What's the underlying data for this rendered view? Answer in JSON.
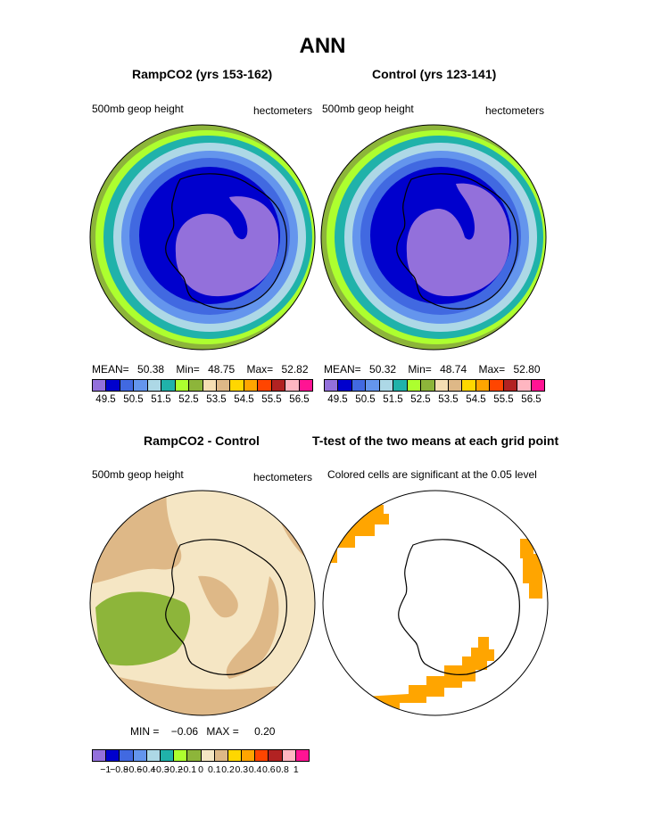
{
  "title": "ANN",
  "panels": [
    {
      "id": "ramp",
      "title": "RampCO2 (yrs 153-162)",
      "left_label": "500mb geop height",
      "right_label": "hectometers",
      "stats": {
        "mean_label": "MEAN=",
        "mean": "50.38",
        "min_label": "Min=",
        "min": "48.75",
        "max_label": "Max=",
        "max": "52.82"
      },
      "colorbar_ticks": [
        "49.5",
        "50.5",
        "51.5",
        "52.5",
        "53.5",
        "54.5",
        "55.5",
        "56.5"
      ]
    },
    {
      "id": "control",
      "title": "Control (yrs 123-141)",
      "left_label": "500mb geop height",
      "right_label": "hectometers",
      "stats": {
        "mean_label": "MEAN=",
        "mean": "50.32",
        "min_label": "Min=",
        "min": "48.74",
        "max_label": "Max=",
        "max": "52.80"
      },
      "colorbar_ticks": [
        "49.5",
        "50.5",
        "51.5",
        "52.5",
        "53.5",
        "54.5",
        "55.5",
        "56.5"
      ]
    },
    {
      "id": "diff",
      "title": "RampCO2 - Control",
      "left_label": "500mb geop height",
      "right_label": "hectometers",
      "stats": {
        "min_label": "MIN =",
        "min": "−0.06",
        "max_label": "MAX =",
        "max": "0.20"
      },
      "colorbar_ticks": [
        "−1",
        "−0.8",
        "−0.6",
        "−0.4",
        "−0.3",
        "−0.2",
        "−0.1",
        "0",
        "0.1",
        "0.2",
        "0.3",
        "0.4",
        "0.6",
        "0.8",
        "1"
      ]
    },
    {
      "id": "ttest",
      "title": "T-test of the two means at each grid point",
      "left_label": "Colored cells are significant at the 0.05 level"
    }
  ],
  "colors": {
    "abs_scale": [
      "#9370DB",
      "#0000CD",
      "#4169E1",
      "#6495ED",
      "#ADD8E6",
      "#20B2AA",
      "#ADFF2F",
      "#8DB53A",
      "#F5DEB3",
      "#DEB887",
      "#FFD700",
      "#FFA500",
      "#FF4500",
      "#B22222",
      "#FFB6C1",
      "#FF1493"
    ],
    "diff_scale": [
      "#9370DB",
      "#0000CD",
      "#4169E1",
      "#6495ED",
      "#ADD8E6",
      "#20B2AA",
      "#ADFF2F",
      "#8DB53A",
      "#F5E6C4",
      "#DEB887",
      "#FFD700",
      "#FFA500",
      "#FF4500",
      "#B22222",
      "#FFB6C1",
      "#FF1493"
    ],
    "significant": "#FFA500"
  }
}
